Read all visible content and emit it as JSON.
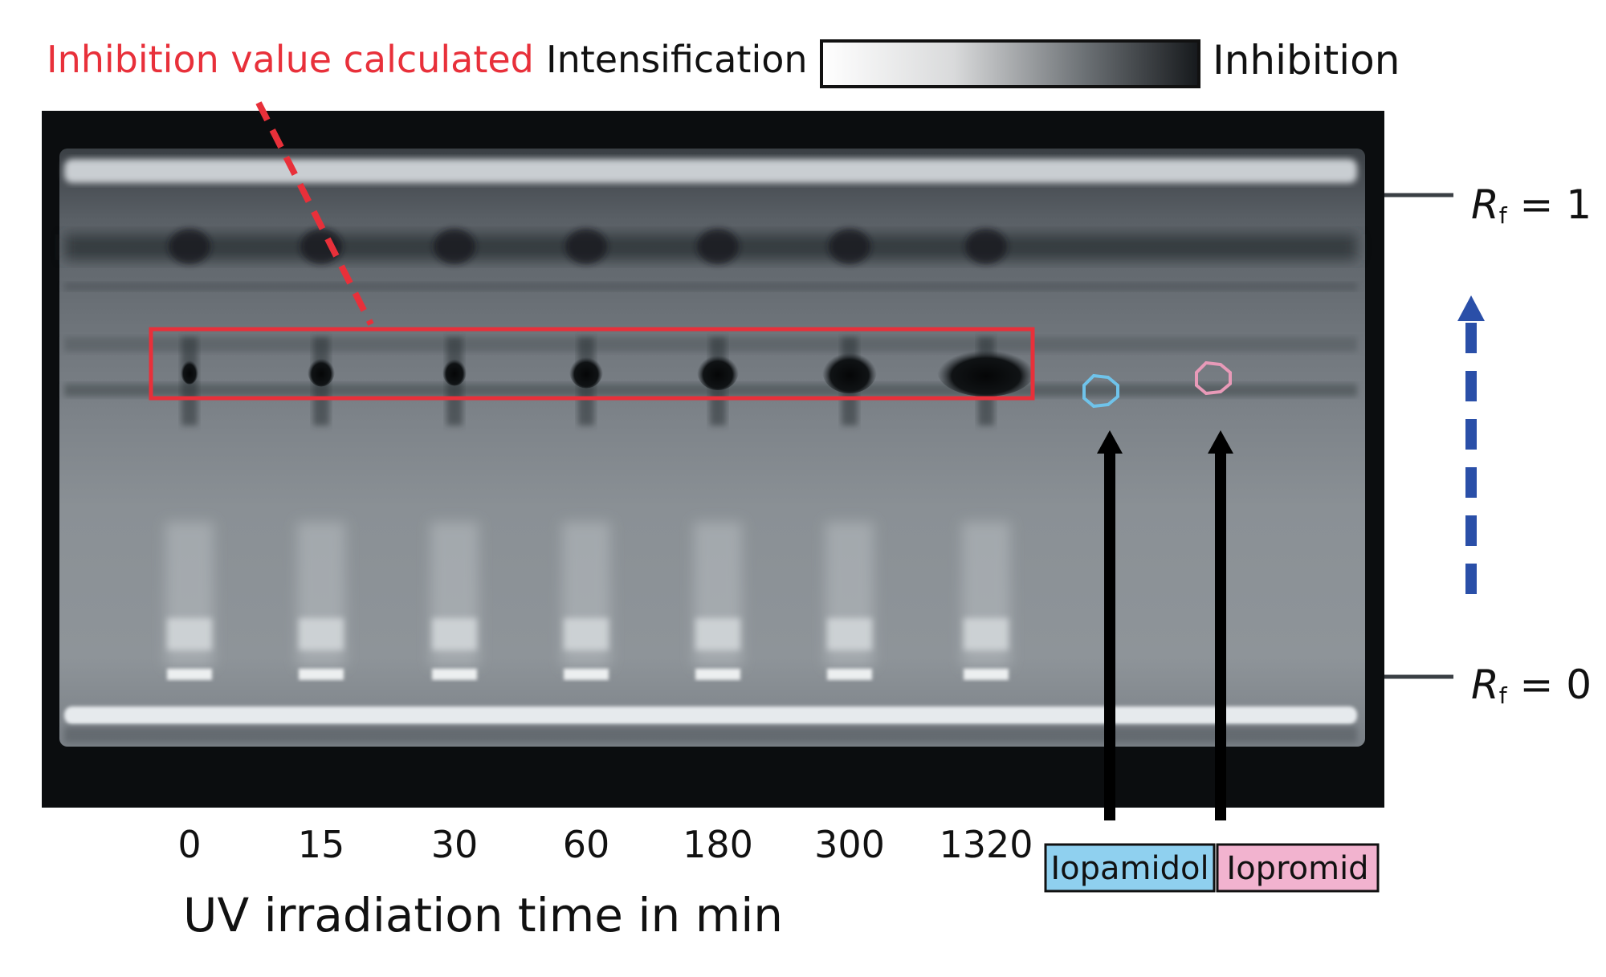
{
  "header": {
    "annotation_label": "Inhibition value calculated",
    "scale_low_label": "Intensification",
    "scale_high_label": "Inhibition"
  },
  "rf_labels": {
    "top": {
      "r": "R",
      "sub": "f",
      "rest": " = 1"
    },
    "bottom": {
      "r": "R",
      "sub": "f",
      "rest": " = 0"
    }
  },
  "lanes": {
    "times": [
      "0",
      "15",
      "30",
      "60",
      "180",
      "300",
      "1320"
    ],
    "axis_label": "UV irradiation time in min"
  },
  "references": [
    {
      "name": "Iopamidol",
      "color": "#8fd0ef",
      "marker_color": "#6fc3ea"
    },
    {
      "name": "Iopromid",
      "color": "#f2b3cf",
      "marker_color": "#e89ab8"
    }
  ],
  "colors": {
    "annotation_red": "#e8303a",
    "arrow_blue": "#2a4fa8",
    "plate_black": "#0b0d0f"
  }
}
